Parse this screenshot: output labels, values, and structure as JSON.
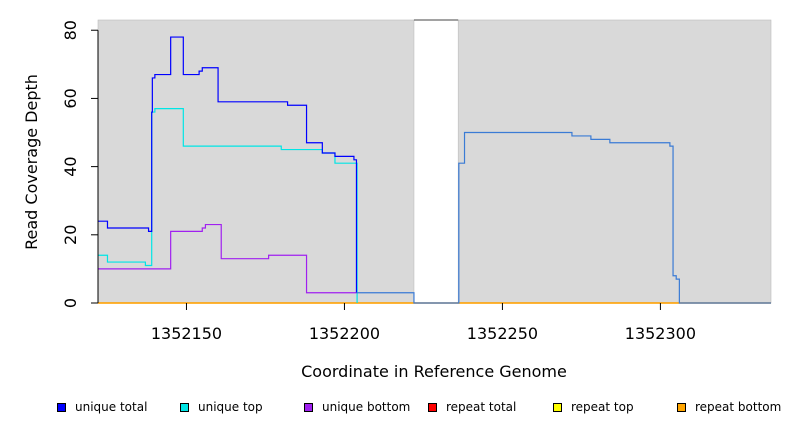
{
  "chart_data": {
    "type": "line",
    "title": "",
    "xlabel": "Coordinate in Reference Genome",
    "ylabel": "Read Coverage Depth",
    "xlim": [
      1352122,
      1352335
    ],
    "ylim": [
      0,
      83
    ],
    "x_ticks": [
      1352150,
      1352200,
      1352250,
      1352300
    ],
    "x_tick_labels": [
      "1352150",
      "1352200",
      "1352250",
      "1352300"
    ],
    "y_ticks": [
      0,
      20,
      40,
      60,
      80
    ],
    "y_tick_labels": [
      "0",
      "20",
      "40",
      "60",
      "80"
    ],
    "shaded_regions": [
      [
        1352122,
        1352222
      ],
      [
        1352236,
        1352335
      ]
    ],
    "grid": false,
    "legend_position": "bottom",
    "series": [
      {
        "name": "unique total",
        "color": "#0000ff",
        "x": [
          1352122,
          1352125,
          1352138,
          1352139,
          1352139.2,
          1352140,
          1352145,
          1352149,
          1352154,
          1352155,
          1352160,
          1352175,
          1352182,
          1352188,
          1352193,
          1352197,
          1352203,
          1352203.8
        ],
        "y": [
          24,
          22,
          21,
          56,
          66,
          67,
          78,
          67,
          68,
          69,
          59,
          59,
          58,
          47,
          44,
          43,
          42,
          3
        ]
      },
      {
        "name": "unique top",
        "color": "#00e5e5",
        "x": [
          1352122,
          1352125,
          1352137,
          1352139,
          1352140,
          1352149,
          1352175,
          1352180,
          1352193,
          1352197,
          1352204
        ],
        "y": [
          14,
          12,
          11,
          56,
          57,
          46,
          46,
          45,
          44,
          41,
          40
        ],
        "y_after": 0
      },
      {
        "name": "unique bottom",
        "color": "#a020f0",
        "x": [
          1352122,
          1352145,
          1352155,
          1352156,
          1352161,
          1352176,
          1352188,
          1352204
        ],
        "y": [
          10,
          21,
          22,
          23,
          13,
          14,
          3,
          3
        ]
      },
      {
        "name": "repeat total",
        "color": "#ff0000",
        "x": [
          1352122,
          1352335
        ],
        "y": [
          0,
          0
        ]
      },
      {
        "name": "repeat top",
        "color": "#ffff00",
        "x": [
          1352122,
          1352335
        ],
        "y": [
          0,
          0
        ]
      },
      {
        "name": "repeat bottom",
        "color": "#ffa500",
        "x": [
          1352122,
          1352335
        ],
        "y": [
          0,
          0
        ]
      },
      {
        "name": "",
        "color": "#3a7bd5",
        "x": [
          1352203.8,
          1352222,
          1352236,
          1352236.2,
          1352237,
          1352238,
          1352272,
          1352278,
          1352284,
          1352302,
          1352303,
          1352304,
          1352305,
          1352306,
          1352335
        ],
        "y": [
          3,
          0,
          0,
          41,
          41,
          50,
          49,
          48,
          47,
          47,
          46,
          8,
          7,
          0,
          0
        ]
      }
    ]
  }
}
